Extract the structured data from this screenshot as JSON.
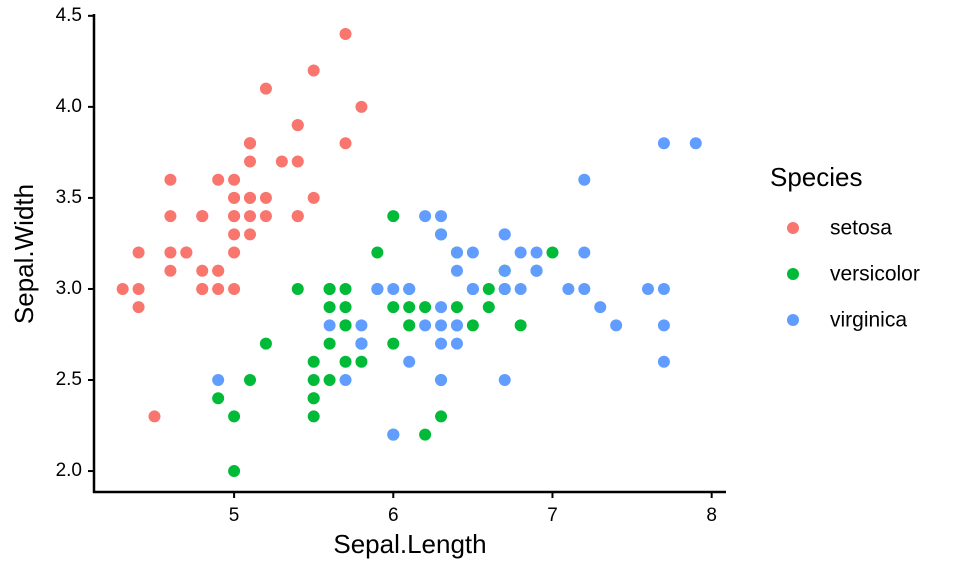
{
  "chart_data": {
    "type": "scatter",
    "x_label": "Sepal.Length",
    "y_label": "Sepal.Width",
    "legend_title": "Species",
    "legend": "right",
    "xlim": [
      4.12,
      8.09
    ],
    "ylim": [
      1.885,
      4.51
    ],
    "xticks": [
      5,
      6,
      7,
      8
    ],
    "yticks": [
      {
        "value": 2,
        "label": "2.0"
      },
      2.5,
      {
        "value": 3,
        "label": "3.0"
      },
      3.5,
      {
        "value": 4,
        "label": "4.0"
      },
      4.5
    ],
    "series": [
      {
        "name": "setosa",
        "color": "#F8766D",
        "x": [
          5.1,
          4.9,
          4.7,
          4.6,
          5.0,
          5.4,
          4.6,
          5.0,
          4.4,
          4.9,
          5.4,
          4.8,
          4.8,
          4.3,
          5.8,
          5.7,
          5.4,
          5.1,
          5.7,
          5.1,
          5.4,
          5.1,
          4.6,
          5.1,
          4.8,
          5.0,
          5.0,
          5.2,
          5.2,
          4.7,
          4.8,
          5.4,
          5.2,
          5.5,
          4.9,
          5.0,
          5.5,
          4.9,
          4.4,
          5.1,
          5.0,
          4.5,
          4.4,
          5.0,
          5.1,
          4.8,
          5.1,
          4.6,
          5.3,
          5.0
        ],
        "values": [
          3.5,
          3.0,
          3.2,
          3.1,
          3.6,
          3.9,
          3.4,
          3.4,
          2.9,
          3.1,
          3.7,
          3.4,
          3.0,
          3.0,
          4.0,
          4.4,
          3.9,
          3.5,
          3.8,
          3.8,
          3.4,
          3.7,
          3.6,
          3.3,
          3.4,
          3.0,
          3.4,
          3.5,
          3.4,
          3.2,
          3.1,
          3.4,
          4.1,
          4.2,
          3.1,
          3.2,
          3.5,
          3.6,
          3.0,
          3.4,
          3.5,
          2.3,
          3.2,
          3.5,
          3.8,
          3.0,
          3.8,
          3.2,
          3.7,
          3.3
        ]
      },
      {
        "name": "versicolor",
        "color": "#00BA38",
        "x": [
          7.0,
          6.4,
          6.9,
          5.5,
          6.5,
          5.7,
          6.3,
          4.9,
          6.6,
          5.2,
          5.0,
          5.9,
          6.0,
          6.1,
          5.6,
          6.7,
          5.6,
          5.8,
          6.2,
          5.6,
          5.9,
          6.1,
          6.3,
          6.1,
          6.4,
          6.6,
          6.8,
          6.7,
          6.0,
          5.7,
          5.5,
          5.5,
          5.8,
          6.0,
          5.4,
          6.0,
          6.7,
          6.3,
          5.6,
          5.5,
          5.5,
          6.1,
          5.8,
          5.0,
          5.6,
          5.7,
          5.7,
          6.2,
          5.1,
          5.7
        ],
        "values": [
          3.2,
          3.2,
          3.1,
          2.3,
          2.8,
          2.8,
          3.3,
          2.4,
          2.9,
          2.7,
          2.0,
          3.0,
          2.2,
          2.9,
          2.9,
          3.1,
          3.0,
          2.7,
          2.2,
          2.5,
          3.2,
          2.8,
          2.5,
          2.8,
          2.9,
          3.0,
          2.8,
          3.0,
          2.9,
          2.6,
          2.4,
          2.4,
          2.7,
          2.7,
          3.0,
          3.4,
          3.1,
          2.3,
          3.0,
          2.5,
          2.6,
          3.0,
          2.6,
          2.3,
          2.7,
          3.0,
          2.9,
          2.9,
          2.5,
          2.8
        ]
      },
      {
        "name": "virginica",
        "color": "#619CFF",
        "x": [
          6.3,
          5.8,
          7.1,
          6.3,
          6.5,
          7.6,
          4.9,
          7.3,
          6.7,
          7.2,
          6.5,
          6.4,
          6.8,
          5.7,
          5.8,
          6.4,
          6.5,
          7.7,
          7.7,
          6.0,
          6.9,
          5.6,
          7.7,
          6.3,
          6.7,
          7.2,
          6.2,
          6.1,
          6.4,
          7.2,
          7.4,
          7.9,
          6.4,
          6.3,
          6.1,
          7.7,
          6.3,
          6.4,
          6.0,
          6.9,
          6.7,
          6.9,
          5.8,
          6.8,
          6.7,
          6.7,
          6.3,
          6.5,
          6.2,
          5.9
        ],
        "values": [
          3.3,
          2.7,
          3.0,
          2.9,
          3.0,
          3.0,
          2.5,
          2.9,
          2.5,
          3.6,
          3.2,
          2.7,
          3.0,
          2.5,
          2.8,
          3.2,
          3.0,
          3.8,
          2.6,
          2.2,
          3.2,
          2.8,
          2.8,
          2.7,
          3.3,
          3.2,
          2.8,
          3.0,
          2.8,
          3.0,
          2.8,
          3.8,
          2.8,
          2.8,
          2.6,
          3.0,
          3.4,
          3.1,
          3.0,
          3.1,
          3.1,
          3.1,
          2.7,
          3.2,
          3.3,
          3.0,
          2.5,
          3.0,
          3.4,
          3.0
        ]
      }
    ]
  }
}
